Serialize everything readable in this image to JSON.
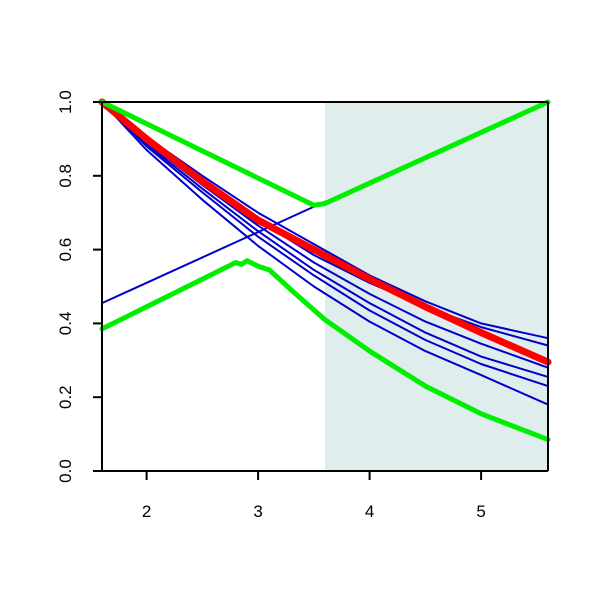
{
  "chart_data": {
    "type": "line",
    "title": "",
    "xlabel": "",
    "ylabel": "",
    "xlim": [
      1.6,
      5.6
    ],
    "ylim": [
      0.0,
      1.0
    ],
    "x_ticks": [
      2,
      3,
      4,
      5
    ],
    "x_tick_labels": [
      "2",
      "3",
      "4",
      "5"
    ],
    "y_ticks": [
      0.0,
      0.2,
      0.4,
      0.6,
      0.8,
      1.0
    ],
    "y_tick_labels": [
      "0.0",
      "0.2",
      "0.4",
      "0.6",
      "0.8",
      "1.0"
    ],
    "grid": false,
    "shaded_region": {
      "x_from": 3.6,
      "x_to": 5.6,
      "color": "#dfeded"
    },
    "colors": {
      "blue": "#0000cc",
      "red": "#ff0000",
      "green": "#00ee00",
      "axis": "#000000"
    },
    "series": [
      {
        "color": "#0000cc",
        "width": 2,
        "points": [
          [
            1.6,
            1.0
          ],
          [
            2.0,
            0.9
          ],
          [
            2.5,
            0.79
          ],
          [
            3.0,
            0.68
          ],
          [
            3.5,
            0.585
          ],
          [
            4.0,
            0.51
          ],
          [
            4.5,
            0.445
          ],
          [
            5.0,
            0.39
          ],
          [
            5.6,
            0.34
          ]
        ]
      },
      {
        "color": "#0000cc",
        "width": 2,
        "points": [
          [
            1.6,
            1.0
          ],
          [
            2.0,
            0.905
          ],
          [
            2.5,
            0.8
          ],
          [
            3.0,
            0.7
          ],
          [
            3.5,
            0.615
          ],
          [
            4.0,
            0.53
          ],
          [
            4.5,
            0.46
          ],
          [
            5.0,
            0.4
          ],
          [
            5.6,
            0.36
          ]
        ]
      },
      {
        "color": "#0000cc",
        "width": 2,
        "points": [
          [
            1.6,
            1.0
          ],
          [
            2.0,
            0.89
          ],
          [
            2.5,
            0.775
          ],
          [
            3.0,
            0.665
          ],
          [
            3.5,
            0.565
          ],
          [
            4.0,
            0.48
          ],
          [
            4.5,
            0.405
          ],
          [
            5.0,
            0.345
          ],
          [
            5.6,
            0.28
          ]
        ]
      },
      {
        "color": "#0000cc",
        "width": 2,
        "points": [
          [
            1.6,
            1.0
          ],
          [
            2.0,
            0.885
          ],
          [
            2.5,
            0.765
          ],
          [
            3.0,
            0.65
          ],
          [
            3.5,
            0.545
          ],
          [
            4.0,
            0.455
          ],
          [
            4.5,
            0.375
          ],
          [
            5.0,
            0.31
          ],
          [
            5.6,
            0.255
          ]
        ]
      },
      {
        "color": "#0000cc",
        "width": 2,
        "points": [
          [
            1.6,
            1.0
          ],
          [
            2.0,
            0.88
          ],
          [
            2.5,
            0.755
          ],
          [
            3.0,
            0.635
          ],
          [
            3.5,
            0.53
          ],
          [
            4.0,
            0.435
          ],
          [
            4.5,
            0.355
          ],
          [
            5.0,
            0.29
          ],
          [
            5.6,
            0.23
          ]
        ]
      },
      {
        "color": "#0000cc",
        "width": 2,
        "points": [
          [
            1.6,
            1.0
          ],
          [
            2.0,
            0.87
          ],
          [
            2.5,
            0.735
          ],
          [
            3.0,
            0.61
          ],
          [
            3.5,
            0.5
          ],
          [
            4.0,
            0.405
          ],
          [
            4.5,
            0.325
          ],
          [
            5.0,
            0.26
          ],
          [
            5.6,
            0.18
          ]
        ]
      },
      {
        "color": "#0000cc",
        "width": 2,
        "points": [
          [
            1.6,
            0.455
          ],
          [
            3.6,
            0.73
          ]
        ]
      },
      {
        "color": "#ff0000",
        "width": 7,
        "points": [
          [
            1.6,
            1.0
          ],
          [
            2.0,
            0.9
          ],
          [
            2.5,
            0.785
          ],
          [
            3.0,
            0.68
          ],
          [
            3.5,
            0.6
          ],
          [
            4.0,
            0.52
          ],
          [
            4.5,
            0.445
          ],
          [
            5.0,
            0.375
          ],
          [
            5.6,
            0.295
          ]
        ]
      },
      {
        "color": "#00ee00",
        "width": 5,
        "points": [
          [
            1.6,
            1.0
          ],
          [
            3.5,
            0.72
          ],
          [
            3.6,
            0.725
          ],
          [
            5.6,
            1.0
          ]
        ]
      },
      {
        "color": "#00ee00",
        "width": 5,
        "points": [
          [
            1.6,
            0.385
          ],
          [
            2.0,
            0.445
          ],
          [
            2.5,
            0.52
          ],
          [
            2.8,
            0.565
          ],
          [
            2.85,
            0.56
          ],
          [
            2.9,
            0.57
          ],
          [
            3.0,
            0.555
          ],
          [
            3.1,
            0.545
          ],
          [
            3.3,
            0.49
          ],
          [
            3.6,
            0.41
          ],
          [
            4.0,
            0.325
          ],
          [
            4.5,
            0.23
          ],
          [
            5.0,
            0.155
          ],
          [
            5.6,
            0.085
          ]
        ]
      }
    ]
  }
}
